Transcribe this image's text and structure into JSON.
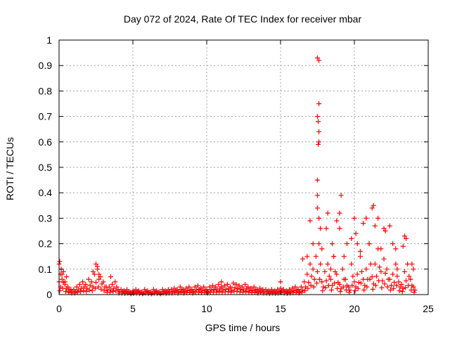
{
  "chart_data": {
    "type": "scatter",
    "title": "Day 072 of 2024, Rate Of TEC Index for receiver mbar",
    "xlabel": "GPS time / hours",
    "ylabel": "ROTI / TECUs",
    "xlim": [
      0,
      25
    ],
    "ylim": [
      0,
      1
    ],
    "grid": true,
    "marker": "+",
    "marker_color": "#ff0000",
    "xticks": [
      "0",
      "5",
      "10",
      "15",
      "20",
      "25"
    ],
    "yticks": [
      "0",
      "0.1",
      "0.2",
      "0.3",
      "0.4",
      "0.5",
      "0.6",
      "0.7",
      "0.8",
      "0.9",
      "1"
    ],
    "baseline_series": {
      "x_start": 0,
      "x_step": 0.2,
      "y": [
        0.05,
        0.08,
        0.04,
        0.03,
        0.02,
        0.02,
        0.03,
        0.04,
        0.05,
        0.04,
        0.06,
        0.05,
        0.08,
        0.1,
        0.07,
        0.05,
        0.03,
        0.03,
        0.04,
        0.05,
        0.02,
        0.02,
        0.015,
        0.02,
        0.01,
        0.015,
        0.02,
        0.015,
        0.01,
        0.02,
        0.015,
        0.01,
        0.02,
        0.015,
        0.01,
        0.02,
        0.015,
        0.02,
        0.02,
        0.025,
        0.02,
        0.03,
        0.02,
        0.025,
        0.03,
        0.02,
        0.03,
        0.035,
        0.025,
        0.03,
        0.02,
        0.03,
        0.035,
        0.03,
        0.04,
        0.03,
        0.035,
        0.04,
        0.03,
        0.045,
        0.04,
        0.035,
        0.03,
        0.04,
        0.03,
        0.025,
        0.03,
        0.02,
        0.025,
        0.02,
        0.02,
        0.015,
        0.02,
        0.015,
        0.02,
        0.025,
        0.02,
        0.015,
        0.02,
        0.025,
        0.03,
        0.02,
        0.03,
        0.05,
        0.08,
        0.12,
        0.1,
        0.15,
        0.2,
        0.05,
        0.09,
        0.12,
        0.06,
        0.15,
        0.08,
        0.04,
        0.1,
        0.06,
        0.03,
        0.12,
        0.05,
        0.08,
        0.15,
        0.06,
        0.1,
        0.2,
        0.07,
        0.12,
        0.18,
        0.09,
        0.14,
        0.1,
        0.06,
        0.08,
        0.12,
        0.05,
        0.04,
        0.09,
        0.12,
        0.06,
        0.03
      ]
    },
    "points": [
      [
        0,
        0.12
      ],
      [
        0.05,
        0.13
      ],
      [
        0.1,
        0.08
      ],
      [
        0.15,
        0.1
      ],
      [
        0.2,
        0.06
      ],
      [
        0.3,
        0.09
      ],
      [
        0.4,
        0.05
      ],
      [
        0.5,
        0.07
      ],
      [
        2.3,
        0.09
      ],
      [
        2.5,
        0.12
      ],
      [
        2.6,
        0.11
      ],
      [
        2.7,
        0.08
      ],
      [
        3.5,
        0.07
      ],
      [
        11,
        0.05
      ],
      [
        15,
        0.05
      ],
      [
        16.5,
        0.14
      ],
      [
        17.5,
        0.93
      ],
      [
        17.6,
        0.92
      ],
      [
        17.6,
        0.75
      ],
      [
        17.5,
        0.7
      ],
      [
        17.55,
        0.68
      ],
      [
        17.6,
        0.64
      ],
      [
        17.55,
        0.59
      ],
      [
        17.6,
        0.6
      ],
      [
        17.5,
        0.45
      ],
      [
        17.5,
        0.39
      ],
      [
        17.5,
        0.34
      ],
      [
        17.6,
        0.3
      ],
      [
        17.7,
        0.26
      ],
      [
        18.2,
        0.32
      ],
      [
        18.1,
        0.26
      ],
      [
        18.8,
        0.29
      ],
      [
        19.0,
        0.32
      ],
      [
        19.1,
        0.39
      ],
      [
        19.0,
        0.26
      ],
      [
        17.0,
        0.29
      ],
      [
        16.8,
        0.15
      ],
      [
        17.2,
        0.2
      ],
      [
        18.5,
        0.2
      ],
      [
        18.6,
        0.15
      ],
      [
        19.5,
        0.2
      ],
      [
        19.8,
        0.22
      ],
      [
        20.0,
        0.3
      ],
      [
        20.1,
        0.24
      ],
      [
        20.2,
        0.2
      ],
      [
        20.6,
        0.28
      ],
      [
        20.8,
        0.3
      ],
      [
        21.3,
        0.35
      ],
      [
        21.2,
        0.34
      ],
      [
        21.6,
        0.3
      ],
      [
        21.4,
        0.27
      ],
      [
        22,
        0.26
      ],
      [
        22.1,
        0.25
      ],
      [
        22.4,
        0.27
      ],
      [
        22.6,
        0.2
      ],
      [
        22.8,
        0.18
      ],
      [
        23.4,
        0.23
      ],
      [
        23.5,
        0.22
      ],
      [
        23.3,
        0.19
      ],
      [
        23.9,
        0.12
      ],
      [
        24,
        0.1
      ],
      [
        21.8,
        0.18
      ],
      [
        21,
        0.2
      ],
      [
        20.4,
        0.17
      ],
      [
        19.3,
        0.15
      ],
      [
        18.4,
        0.1
      ],
      [
        17.8,
        0.18
      ],
      [
        22.9,
        0.1
      ]
    ]
  }
}
